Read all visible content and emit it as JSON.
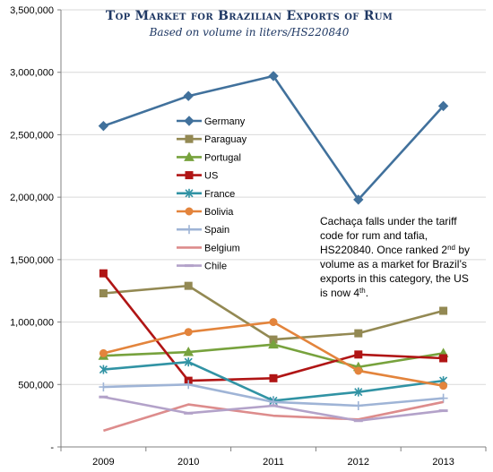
{
  "chart_data": {
    "type": "line",
    "title": "Top Market for Brazilian Exports of Rum",
    "subtitle": "Based on volume in liters/HS220840",
    "xlabel": "",
    "ylabel": "",
    "categories": [
      "2009",
      "2010",
      "2011",
      "2012",
      "2013"
    ],
    "ylim": [
      0,
      3500000
    ],
    "yticks": [
      "-",
      "500,000",
      "1,000,000",
      "1,500,000",
      "2,000,000",
      "2,500,000",
      "3,000,000",
      "3,500,000"
    ],
    "grid": "horizontal",
    "legend_position": "center-left",
    "series": [
      {
        "name": "Germany",
        "color": "#41719c",
        "marker": "diamond",
        "values": [
          2570000,
          2810000,
          2970000,
          1980000,
          2730000
        ]
      },
      {
        "name": "Paraguay",
        "color": "#938953",
        "marker": "square",
        "values": [
          1230000,
          1290000,
          860000,
          910000,
          1090000
        ]
      },
      {
        "name": "Portugal",
        "color": "#77a23d",
        "marker": "triangle",
        "values": [
          730000,
          760000,
          820000,
          640000,
          750000
        ]
      },
      {
        "name": "US",
        "color": "#b01515",
        "marker": "square",
        "values": [
          1390000,
          530000,
          550000,
          740000,
          710000
        ]
      },
      {
        "name": "France",
        "color": "#3193a4",
        "marker": "star",
        "values": [
          620000,
          680000,
          370000,
          440000,
          530000
        ]
      },
      {
        "name": "Bolivia",
        "color": "#e3843c",
        "marker": "circle",
        "values": [
          750000,
          920000,
          1000000,
          610000,
          490000
        ]
      },
      {
        "name": "Spain",
        "color": "#9fb4d6",
        "marker": "plus",
        "values": [
          480000,
          500000,
          360000,
          330000,
          390000
        ]
      },
      {
        "name": "Belgium",
        "color": "#dd8c8c",
        "marker": "none",
        "values": [
          130000,
          340000,
          250000,
          220000,
          360000
        ]
      },
      {
        "name": "Chile",
        "color": "#b3a2c9",
        "marker": "dash",
        "values": [
          400000,
          270000,
          330000,
          210000,
          290000
        ]
      }
    ],
    "annotation": {
      "lines": [
        [
          {
            "t": "Cachaça falls under the tariff"
          }
        ],
        [
          {
            "t": "code for rum and tafia,"
          }
        ],
        [
          {
            "t": "HS220840. Once ranked 2"
          },
          {
            "t": "nd",
            "sup": true
          },
          {
            "t": " by"
          }
        ],
        [
          {
            "t": "volume as a market for Brazil’s"
          }
        ],
        [
          {
            "t": "exports in this category, the US"
          }
        ],
        [
          {
            "t": "is now 4"
          },
          {
            "t": "th",
            "sup": true
          },
          {
            "t": "."
          }
        ]
      ]
    }
  }
}
